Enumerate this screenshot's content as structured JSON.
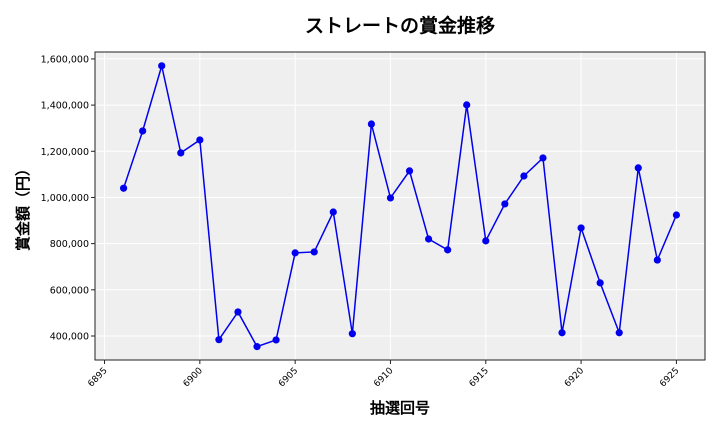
{
  "chart_data": {
    "type": "line",
    "title": "ストレートの賞金推移",
    "xlabel": "抽選回号",
    "ylabel": "賞金額（円）",
    "xlim": [
      6894.5,
      6926.5
    ],
    "ylim": [
      296000,
      1630000
    ],
    "xticks": [
      6895,
      6900,
      6905,
      6910,
      6915,
      6920,
      6925
    ],
    "yticks": [
      400000,
      600000,
      800000,
      1000000,
      1200000,
      1400000,
      1600000
    ],
    "ytick_labels": [
      "400,000",
      "600,000",
      "800,000",
      "1,000,000",
      "1,200,000",
      "1,400,000",
      "1,600,000"
    ],
    "grid": true,
    "series": [
      {
        "color": "#0000ee",
        "x": [
          6896,
          6897,
          6898,
          6899,
          6900,
          6901,
          6902,
          6903,
          6904,
          6905,
          6906,
          6907,
          6908,
          6909,
          6910,
          6911,
          6912,
          6913,
          6914,
          6915,
          6916,
          6917,
          6918,
          6919,
          6920,
          6921,
          6922,
          6923,
          6924,
          6925
        ],
        "y": [
          1040000,
          1288000,
          1570000,
          1193000,
          1249000,
          384000,
          504000,
          354000,
          383000,
          760000,
          764000,
          937000,
          410000,
          1318000,
          998000,
          1115000,
          820000,
          773000,
          1401000,
          812000,
          972000,
          1093000,
          1171000,
          414000,
          868000,
          630000,
          414000,
          1128000,
          729000,
          924000
        ]
      }
    ]
  }
}
